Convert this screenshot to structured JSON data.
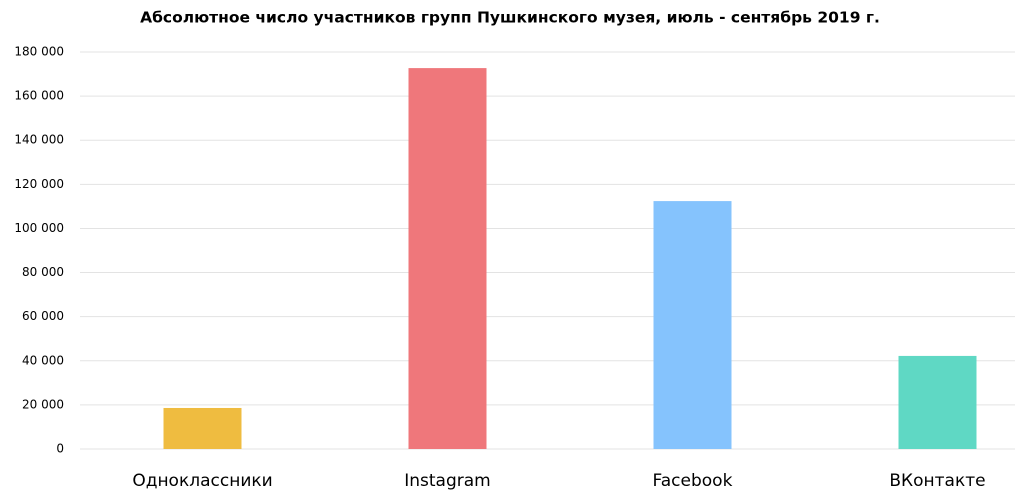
{
  "chart_data": {
    "type": "bar",
    "title": "Абсолютное число участников групп Пушкинского музея, июль - сентябрь 2019 г.",
    "categories": [
      "Одноклассники",
      "Instagram",
      "Facebook",
      "ВКонтакте"
    ],
    "values": [
      18600,
      172700,
      112400,
      42200
    ],
    "colors": [
      "#efbc40",
      "#ef777b",
      "#85c3fd",
      "#5fd8c4"
    ],
    "ylim": [
      0,
      180000
    ],
    "yticks": [
      {
        "value": 0,
        "label": "0"
      },
      {
        "value": 20000,
        "label": "20 000"
      },
      {
        "value": 40000,
        "label": "40 000"
      },
      {
        "value": 60000,
        "label": "60 000"
      },
      {
        "value": 80000,
        "label": "80 000"
      },
      {
        "value": 100000,
        "label": "100 000"
      },
      {
        "value": 120000,
        "label": "120 000"
      },
      {
        "value": 140000,
        "label": "140 000"
      },
      {
        "value": 160000,
        "label": "160 000"
      },
      {
        "value": 180000,
        "label": "180 000"
      }
    ],
    "grid": true
  }
}
